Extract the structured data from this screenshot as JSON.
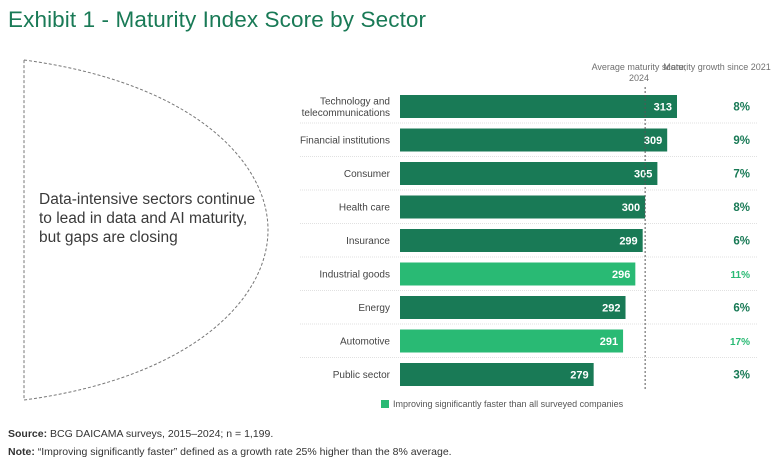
{
  "header": {
    "title": "Exhibit 1 - Maturity Index Score by Sector"
  },
  "callout": {
    "text": "Data-intensive sectors continue to lead in data and AI maturity, but gaps are closing"
  },
  "columns": {
    "score_header": "Average maturity score, 2024",
    "growth_header": "Maturity growth since 2021"
  },
  "colors": {
    "dark_green": "#197a56",
    "light_green": "#29ba74",
    "growth_text": "#197a56",
    "growth_highlight": "#29ba74"
  },
  "chart_data": {
    "type": "bar",
    "orientation": "horizontal",
    "title": "Exhibit 1 - Maturity Index Score by Sector",
    "categories": [
      "Technology and telecommunications",
      "Financial institutions",
      "Consumer",
      "Health care",
      "Insurance",
      "Industrial goods",
      "Energy",
      "Automotive",
      "Public sector"
    ],
    "category_lines": [
      [
        "Technology and",
        "telecommunications"
      ],
      [
        "Financial institutions"
      ],
      [
        "Consumer"
      ],
      [
        "Health care"
      ],
      [
        "Insurance"
      ],
      [
        "Industrial goods"
      ],
      [
        "Energy"
      ],
      [
        "Automotive"
      ],
      [
        "Public sector"
      ]
    ],
    "values": [
      313,
      309,
      305,
      300,
      299,
      296,
      292,
      291,
      279
    ],
    "value_labels": [
      "313",
      "309",
      "305",
      "300",
      "299",
      "296",
      "292",
      "291",
      "279"
    ],
    "growth": [
      "8%",
      "9%",
      "7%",
      "8%",
      "6%",
      "11%",
      "6%",
      "17%",
      "3%"
    ],
    "improving_faster": [
      false,
      false,
      false,
      false,
      false,
      true,
      false,
      true,
      false
    ],
    "average": 300,
    "xlim": [
      200,
      313
    ],
    "xlabel": "Average maturity score, 2024",
    "ylabel": "",
    "legend": "Improving significantly faster than all surveyed companies"
  },
  "legend": {
    "label": "Improving significantly faster than all surveyed companies"
  },
  "footer": {
    "source_label": "Source:",
    "source_text": " BCG DAICAMA surveys, 2015–2024; n = 1,199.",
    "note_label": "Note:",
    "note_text": " “Improving significantly faster” defined as a growth rate 25% higher than the 8% average."
  }
}
